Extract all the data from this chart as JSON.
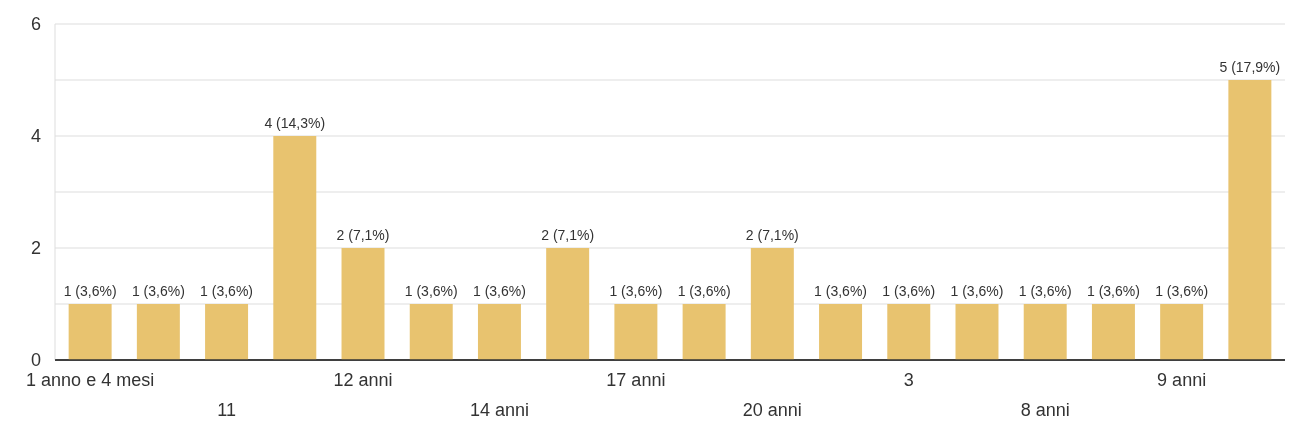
{
  "chart_data": {
    "type": "bar",
    "categories": [
      "1 anno e 4 mesi",
      null,
      "11",
      null,
      "12 anni",
      null,
      "14 anni",
      null,
      "17 anni",
      null,
      "20 anni",
      null,
      "3",
      null,
      "8 anni",
      null,
      "9 anni",
      null
    ],
    "values": [
      1,
      1,
      1,
      4,
      2,
      1,
      1,
      2,
      1,
      1,
      2,
      1,
      1,
      1,
      1,
      1,
      1,
      5
    ],
    "value_labels": [
      "1 (3,6%)",
      "1 (3,6%)",
      "1 (3,6%)",
      "4 (14,3%)",
      "2 (7,1%)",
      "1 (3,6%)",
      "1 (3,6%)",
      "2 (7,1%)",
      "1 (3,6%)",
      "1 (3,6%)",
      "2 (7,1%)",
      "1 (3,6%)",
      "1 (3,6%)",
      "1 (3,6%)",
      "1 (3,6%)",
      "1 (3,6%)",
      "1 (3,6%)",
      "5 (17,9%)"
    ],
    "color": "#e8c36f",
    "ylim": [
      0,
      6
    ],
    "yticks": [
      0,
      {
        "value": 1,
        "label": null
      },
      2,
      {
        "value": 3,
        "label": null
      },
      4,
      {
        "value": 5,
        "label": null
      },
      6
    ],
    "grid": true
  }
}
